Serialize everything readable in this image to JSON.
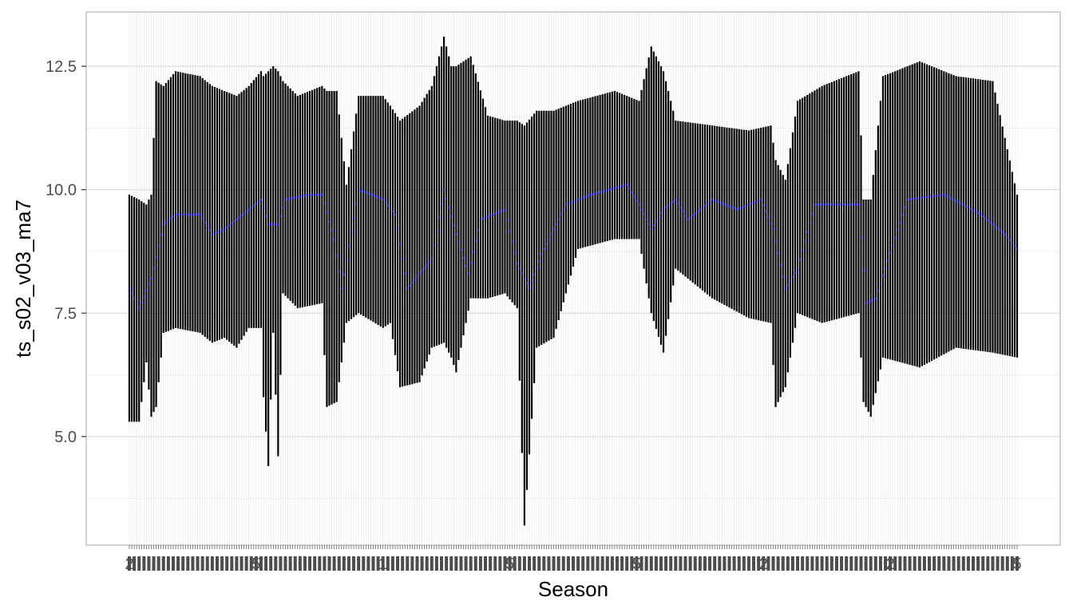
{
  "chart_data": {
    "type": "line",
    "title": "",
    "xlabel": "Season",
    "ylabel": "ts_s02_v03_ma7",
    "x": {
      "start": 1,
      "end": 365
    },
    "x_tick_labels_visible": [
      "2",
      "5",
      "1",
      "5",
      "5",
      "2",
      "2",
      "5"
    ],
    "ylim": [
      2.8,
      13.6
    ],
    "y_ticks": [
      5.0,
      7.5,
      10.0,
      12.5
    ],
    "y_tick_labels": [
      "5.0",
      "7.5",
      "10.0",
      "12.5"
    ],
    "grid": true,
    "legend": "none",
    "colors": {
      "range_bars": "#000000",
      "center_line": "#1a1adb",
      "panel_border": "#b3b3b3",
      "grid_major": "#d9d9d9",
      "grid_minor": "#eeeeee"
    },
    "series": [
      {
        "role": "range",
        "points": [
          [
            1,
            5.3,
            9.9
          ],
          [
            5,
            5.3,
            9.8
          ],
          [
            8,
            6.5,
            9.7
          ],
          [
            10,
            5.4,
            9.9
          ],
          [
            12,
            5.6,
            12.2
          ],
          [
            15,
            7.1,
            12.1
          ],
          [
            20,
            7.2,
            12.4
          ],
          [
            30,
            7.1,
            12.3
          ],
          [
            35,
            6.9,
            12.1
          ],
          [
            40,
            7.0,
            12.0
          ],
          [
            45,
            6.8,
            11.9
          ],
          [
            50,
            7.2,
            12.1
          ],
          [
            55,
            7.2,
            12.4
          ],
          [
            60,
            7.1,
            12.5
          ],
          [
            56,
            5.8,
            12.3
          ],
          [
            58,
            4.4,
            12.4
          ],
          [
            62,
            4.6,
            12.4
          ],
          [
            64,
            7.9,
            12.2
          ],
          [
            70,
            7.6,
            11.9
          ],
          [
            80,
            7.7,
            12.1
          ],
          [
            82,
            5.6,
            12.0
          ],
          [
            86,
            5.7,
            12.0
          ],
          [
            90,
            7.3,
            10.1
          ],
          [
            95,
            7.5,
            11.9
          ],
          [
            105,
            7.2,
            11.9
          ],
          [
            108,
            7.3,
            11.7
          ],
          [
            112,
            6.0,
            11.4
          ],
          [
            120,
            6.1,
            11.7
          ],
          [
            125,
            6.8,
            12.1
          ],
          [
            130,
            6.9,
            13.1
          ],
          [
            133,
            6.6,
            12.5
          ],
          [
            135,
            6.3,
            12.5
          ],
          [
            141,
            7.8,
            12.7
          ],
          [
            148,
            7.8,
            11.5
          ],
          [
            155,
            7.9,
            11.4
          ],
          [
            160,
            7.6,
            11.4
          ],
          [
            163,
            3.2,
            11.3
          ],
          [
            168,
            6.8,
            11.6
          ],
          [
            175,
            7.0,
            11.6
          ],
          [
            185,
            8.8,
            11.8
          ],
          [
            200,
            9.0,
            12.0
          ],
          [
            210,
            9.0,
            11.8
          ],
          [
            215,
            7.5,
            12.9
          ],
          [
            220,
            6.7,
            12.4
          ],
          [
            225,
            8.4,
            11.4
          ],
          [
            240,
            7.8,
            11.3
          ],
          [
            255,
            7.4,
            11.2
          ],
          [
            264,
            7.3,
            11.3
          ],
          [
            266,
            5.6,
            10.6
          ],
          [
            270,
            6.0,
            10.2
          ],
          [
            275,
            7.5,
            11.8
          ],
          [
            285,
            7.3,
            12.1
          ],
          [
            300,
            7.5,
            12.4
          ],
          [
            302,
            5.7,
            9.8
          ],
          [
            305,
            5.4,
            9.8
          ],
          [
            310,
            6.6,
            12.3
          ],
          [
            325,
            6.4,
            12.6
          ],
          [
            340,
            6.8,
            12.3
          ],
          [
            355,
            6.7,
            12.2
          ],
          [
            365,
            6.6,
            9.9
          ]
        ]
      },
      {
        "role": "center",
        "points": [
          [
            1,
            8.0
          ],
          [
            5,
            7.6
          ],
          [
            10,
            8.2
          ],
          [
            15,
            9.3
          ],
          [
            20,
            9.5
          ],
          [
            30,
            9.5
          ],
          [
            35,
            9.1
          ],
          [
            40,
            9.2
          ],
          [
            50,
            9.6
          ],
          [
            55,
            9.8
          ],
          [
            58,
            9.3
          ],
          [
            62,
            9.3
          ],
          [
            65,
            9.8
          ],
          [
            75,
            9.9
          ],
          [
            80,
            9.9
          ],
          [
            85,
            9.0
          ],
          [
            88,
            8.0
          ],
          [
            95,
            10.0
          ],
          [
            105,
            9.8
          ],
          [
            110,
            9.5
          ],
          [
            115,
            8.0
          ],
          [
            120,
            8.3
          ],
          [
            125,
            8.6
          ],
          [
            130,
            10.0
          ],
          [
            135,
            9.1
          ],
          [
            140,
            8.3
          ],
          [
            145,
            9.4
          ],
          [
            150,
            9.5
          ],
          [
            155,
            9.6
          ],
          [
            160,
            8.5
          ],
          [
            165,
            8.0
          ],
          [
            170,
            8.7
          ],
          [
            180,
            9.7
          ],
          [
            190,
            9.9
          ],
          [
            205,
            10.1
          ],
          [
            210,
            9.7
          ],
          [
            215,
            9.2
          ],
          [
            220,
            9.6
          ],
          [
            225,
            9.8
          ],
          [
            230,
            9.4
          ],
          [
            240,
            9.8
          ],
          [
            250,
            9.6
          ],
          [
            260,
            9.8
          ],
          [
            265,
            9.2
          ],
          [
            270,
            8.0
          ],
          [
            275,
            8.4
          ],
          [
            282,
            9.7
          ],
          [
            300,
            9.7
          ],
          [
            303,
            7.7
          ],
          [
            307,
            7.8
          ],
          [
            320,
            9.8
          ],
          [
            335,
            9.9
          ],
          [
            350,
            9.5
          ],
          [
            360,
            9.1
          ],
          [
            365,
            8.8
          ]
        ]
      }
    ]
  }
}
